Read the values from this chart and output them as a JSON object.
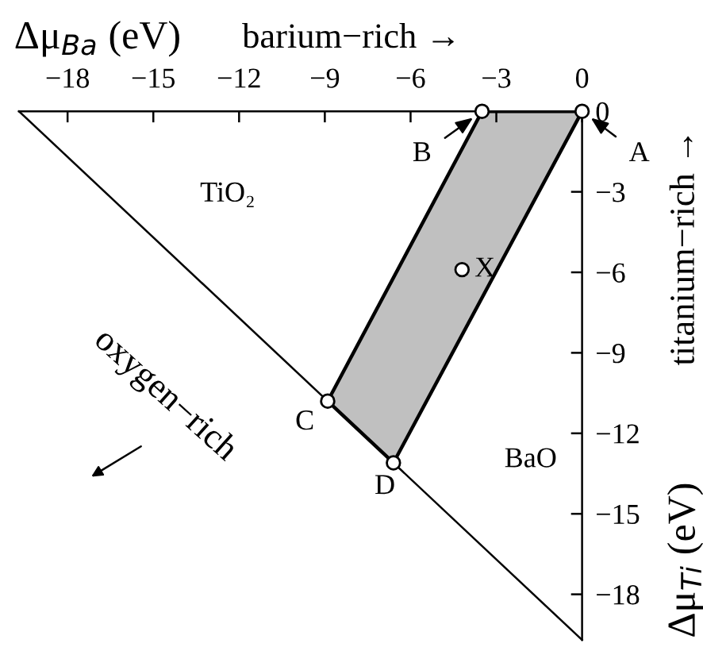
{
  "chart_data": {
    "type": "line",
    "xlabel": "Δμ$_{Ba}$ (eV)",
    "ylabel": "Δμ$_{Ti}$ (eV)",
    "xlim": [
      -19.7,
      0
    ],
    "ylim": [
      -19.7,
      0
    ],
    "xticks": [
      {
        "value": -18,
        "label": "−18"
      },
      {
        "value": -15,
        "label": "−15"
      },
      {
        "value": -12,
        "label": "−12"
      },
      {
        "value": -9,
        "label": "−9"
      },
      {
        "value": -6,
        "label": "−6"
      },
      {
        "value": -3,
        "label": "−3"
      },
      0
    ],
    "yticks": [
      0,
      {
        "value": -3,
        "label": "−3"
      },
      {
        "value": -6,
        "label": "−6"
      },
      {
        "value": -9,
        "label": "−9"
      },
      {
        "value": -12,
        "label": "−12"
      },
      {
        "value": -15,
        "label": "−15"
      },
      {
        "value": -18,
        "label": "−18"
      }
    ],
    "series": [
      {
        "type": "line",
        "color": "#000000",
        "x": [
          -19.7,
          0
        ],
        "values": [
          0,
          -19.7
        ]
      },
      {
        "type": "area",
        "color": "#c0c0c0",
        "x": [
          -3.5,
          0,
          -6.6,
          -8.9
        ],
        "values": [
          0,
          0,
          -13.1,
          -10.8
        ]
      },
      {
        "type": "scatter",
        "color": "#ffffff",
        "marker": "circle",
        "x": [
          0,
          -3.5,
          -8.9,
          -6.6,
          -4.2
        ],
        "values": [
          0,
          0,
          -10.8,
          -13.1,
          -5.9
        ]
      }
    ],
    "annotations": [
      "A",
      "B",
      "C",
      "D",
      "X",
      "TiO₂",
      "BaO",
      "barium−rich →",
      "titanium−rich →",
      "oxygen−rich"
    ],
    "grid": false
  }
}
